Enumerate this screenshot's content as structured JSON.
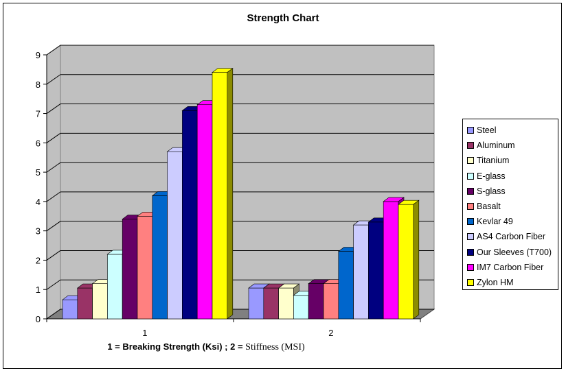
{
  "chart_data": {
    "type": "bar",
    "title": "Strength Chart",
    "xlabel_sans": "1 = Breaking Strength (Ksi) ; 2 = ",
    "xlabel_serif": "Stiffness (MSI)",
    "ylabel": "",
    "categories": [
      "1",
      "2"
    ],
    "ylim": [
      0,
      9
    ],
    "yticks": [
      "0",
      "1",
      "2",
      "3",
      "4",
      "5",
      "6",
      "7",
      "8",
      "9"
    ],
    "grid": true,
    "legend_position": "right",
    "series": [
      {
        "name": "Steel",
        "color": "#9999ff",
        "values": [
          0.65,
          1.05
        ]
      },
      {
        "name": "Aluminum",
        "color": "#993366",
        "values": [
          1.05,
          1.05
        ]
      },
      {
        "name": "Titanium",
        "color": "#ffffcc",
        "values": [
          1.2,
          1.05
        ]
      },
      {
        "name": "E-glass",
        "color": "#ccffff",
        "values": [
          2.2,
          0.8
        ]
      },
      {
        "name": "S-glass",
        "color": "#660066",
        "values": [
          3.4,
          1.2
        ]
      },
      {
        "name": "Basalt",
        "color": "#ff8080",
        "values": [
          3.5,
          1.2
        ]
      },
      {
        "name": "Kevlar 49",
        "color": "#0066cc",
        "values": [
          4.2,
          2.3
        ]
      },
      {
        "name": "AS4 Carbon Fiber",
        "color": "#ccccff",
        "values": [
          5.7,
          3.2
        ]
      },
      {
        "name": "Our Sleeves (T700)",
        "color": "#000080",
        "values": [
          7.1,
          3.3
        ]
      },
      {
        "name": "IM7 Carbon Fiber",
        "color": "#ff00ff",
        "values": [
          7.3,
          4.0
        ]
      },
      {
        "name": "Zylon HM",
        "color": "#ffff00",
        "values": [
          8.4,
          3.9
        ]
      }
    ]
  }
}
